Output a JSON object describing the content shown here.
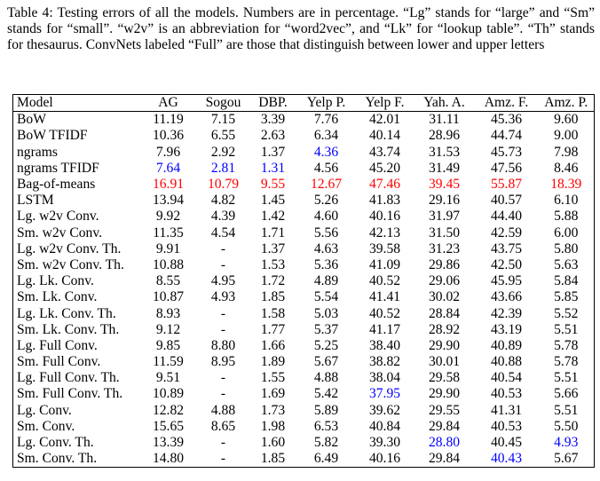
{
  "caption": "Table 4: Testing errors of all the models. Numbers are in percentage. “Lg” stands for “large” and “Sm” stands for “small”. “w2v” is an abbreviation for “word2vec”, and “Lk” for “lookup table”. “Th” stands for thesaurus. ConvNets labeled “Full” are those that distinguish between lower and upper letters",
  "table": {
    "header": [
      "Model",
      "AG",
      "Sogou",
      "DBP.",
      "Yelp P.",
      "Yelp F.",
      "Yah. A.",
      "Amz. F.",
      "Amz. P."
    ],
    "rows": [
      [
        "BoW",
        "11.19",
        "7.15",
        "3.39",
        "7.76",
        "42.01",
        "31.11",
        "45.36",
        "9.60"
      ],
      [
        "BoW TFIDF",
        "10.36",
        "6.55",
        "2.63",
        "6.34",
        "40.14",
        "28.96",
        "44.74",
        "9.00"
      ],
      [
        "ngrams",
        "7.96",
        "2.92",
        "1.37",
        "4.36",
        "43.74",
        "31.53",
        "45.73",
        "7.98"
      ],
      [
        "ngrams TFIDF",
        "7.64",
        "2.81",
        "1.31",
        "4.56",
        "45.20",
        "31.49",
        "47.56",
        "8.46"
      ],
      [
        "Bag-of-means",
        "16.91",
        "10.79",
        "9.55",
        "12.67",
        "47.46",
        "39.45",
        "55.87",
        "18.39"
      ],
      [
        "LSTM",
        "13.94",
        "4.82",
        "1.45",
        "5.26",
        "41.83",
        "29.16",
        "40.57",
        "6.10"
      ],
      [
        "Lg. w2v Conv.",
        "9.92",
        "4.39",
        "1.42",
        "4.60",
        "40.16",
        "31.97",
        "44.40",
        "5.88"
      ],
      [
        "Sm. w2v Conv.",
        "11.35",
        "4.54",
        "1.71",
        "5.56",
        "42.13",
        "31.50",
        "42.59",
        "6.00"
      ],
      [
        "Lg. w2v Conv. Th.",
        "9.91",
        "-",
        "1.37",
        "4.63",
        "39.58",
        "31.23",
        "43.75",
        "5.80"
      ],
      [
        "Sm. w2v Conv. Th.",
        "10.88",
        "-",
        "1.53",
        "5.36",
        "41.09",
        "29.86",
        "42.50",
        "5.63"
      ],
      [
        "Lg. Lk. Conv.",
        "8.55",
        "4.95",
        "1.72",
        "4.89",
        "40.52",
        "29.06",
        "45.95",
        "5.84"
      ],
      [
        "Sm. Lk. Conv.",
        "10.87",
        "4.93",
        "1.85",
        "5.54",
        "41.41",
        "30.02",
        "43.66",
        "5.85"
      ],
      [
        "Lg. Lk. Conv. Th.",
        "8.93",
        "-",
        "1.58",
        "5.03",
        "40.52",
        "28.84",
        "42.39",
        "5.52"
      ],
      [
        "Sm. Lk. Conv. Th.",
        "9.12",
        "-",
        "1.77",
        "5.37",
        "41.17",
        "28.92",
        "43.19",
        "5.51"
      ],
      [
        "Lg. Full Conv.",
        "9.85",
        "8.80",
        "1.66",
        "5.25",
        "38.40",
        "29.90",
        "40.89",
        "5.78"
      ],
      [
        "Sm. Full Conv.",
        "11.59",
        "8.95",
        "1.89",
        "5.67",
        "38.82",
        "30.01",
        "40.88",
        "5.78"
      ],
      [
        "Lg. Full Conv. Th.",
        "9.51",
        "-",
        "1.55",
        "4.88",
        "38.04",
        "29.58",
        "40.54",
        "5.51"
      ],
      [
        "Sm. Full Conv. Th.",
        "10.89",
        "-",
        "1.69",
        "5.42",
        "37.95",
        "29.90",
        "40.53",
        "5.66"
      ],
      [
        "Lg. Conv.",
        "12.82",
        "4.88",
        "1.73",
        "5.89",
        "39.62",
        "29.55",
        "41.31",
        "5.51"
      ],
      [
        "Sm. Conv.",
        "15.65",
        "8.65",
        "1.98",
        "6.53",
        "40.84",
        "29.84",
        "40.53",
        "5.50"
      ],
      [
        "Lg. Conv. Th.",
        "13.39",
        "-",
        "1.60",
        "5.82",
        "39.30",
        "28.80",
        "40.45",
        "4.93"
      ],
      [
        "Sm. Conv. Th.",
        "14.80",
        "-",
        "1.85",
        "6.49",
        "40.16",
        "29.84",
        "40.43",
        "5.67"
      ]
    ]
  }
}
